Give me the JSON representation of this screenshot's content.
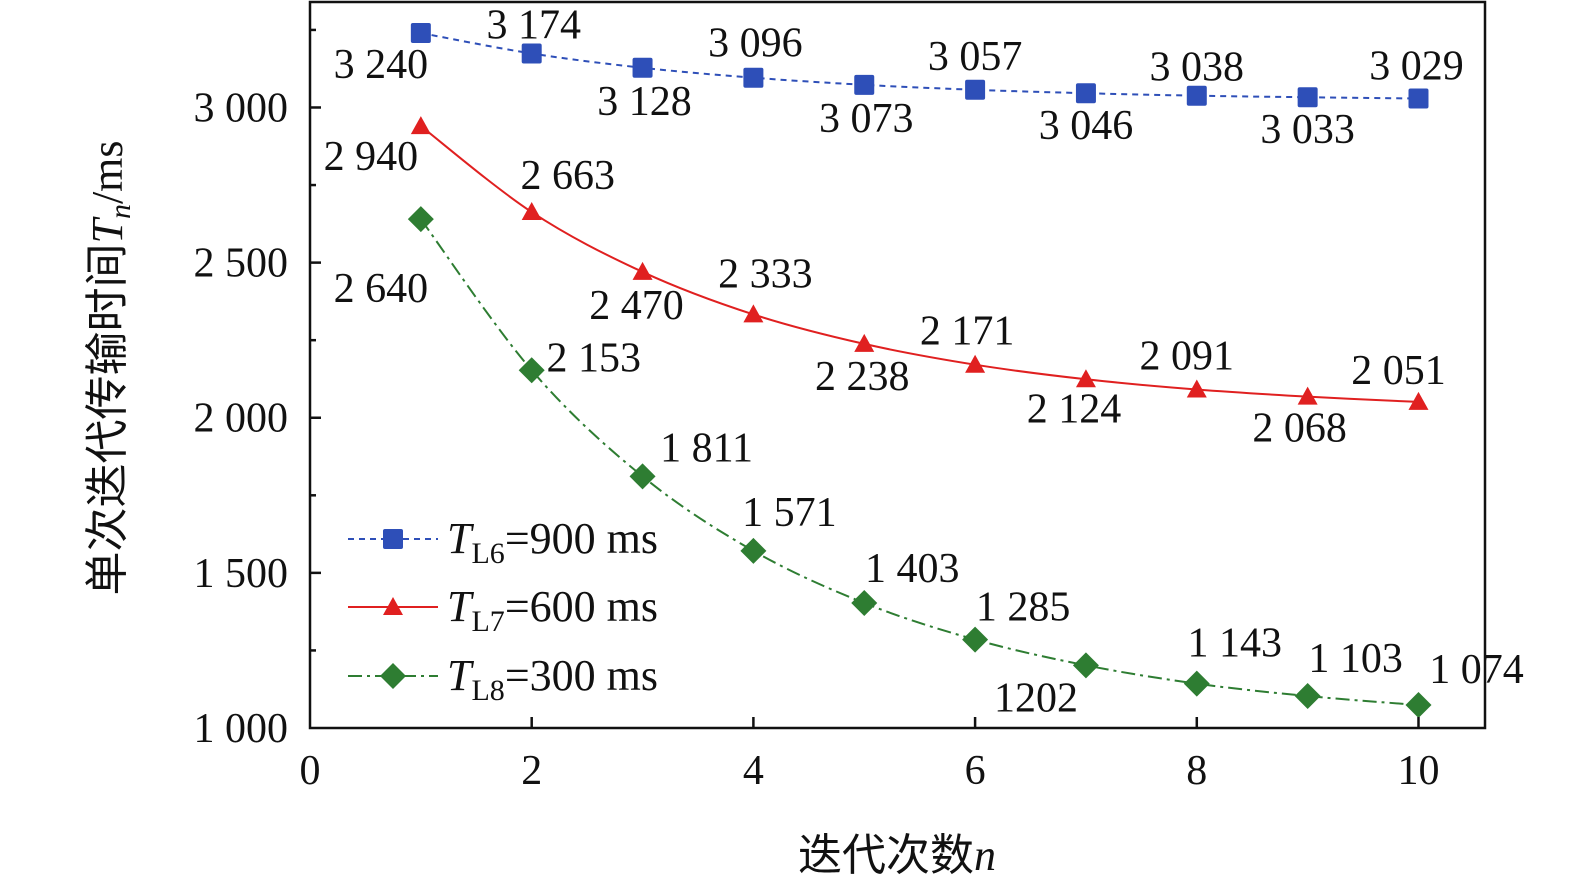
{
  "chart_data": {
    "type": "line",
    "xlabel": "迭代次数",
    "xlabel_var": "n",
    "ylabel": "单次迭代传输时间",
    "ylabel_var": "T",
    "ylabel_sub": "n",
    "ylabel_unit": "/ms",
    "xlim": [
      0,
      10.6
    ],
    "ylim": [
      1000,
      3340
    ],
    "x_ticks": [
      0,
      2,
      4,
      6,
      8,
      10
    ],
    "x_tick_labels": [
      "0",
      "2",
      "4",
      "6",
      "8",
      "10"
    ],
    "y_ticks": [
      1000,
      1500,
      2000,
      2500,
      3000
    ],
    "y_tick_labels": [
      "1 000",
      "1 500",
      "2 000",
      "2 500",
      "3 000"
    ],
    "grid": false,
    "legend_position": "bottom-left",
    "x": [
      1,
      2,
      3,
      4,
      5,
      6,
      7,
      8,
      9,
      10
    ],
    "series": [
      {
        "name_var": "T",
        "name_sub": "L6",
        "name_rest": "=900 ms",
        "color": "#2e4fb8",
        "marker": "square",
        "line_style": "dotted",
        "values": [
          3240,
          3174,
          3128,
          3096,
          3073,
          3057,
          3046,
          3038,
          3033,
          3029
        ],
        "labels": [
          "3 240",
          "3 174",
          "3 128",
          "3 096",
          "3 073",
          "3 057",
          "3 046",
          "3 038",
          "3 033",
          "3 029"
        ]
      },
      {
        "name_var": "T",
        "name_sub": "L7",
        "name_rest": "=600 ms",
        "color": "#e02020",
        "marker": "triangle",
        "line_style": "solid",
        "values": [
          2940,
          2663,
          2470,
          2333,
          2238,
          2171,
          2124,
          2091,
          2068,
          2051
        ],
        "labels": [
          "2 940",
          "2 663",
          "2 470",
          "2 333",
          "2 238",
          "2 171",
          "2 124",
          "2 091",
          "2 068",
          "2 051"
        ]
      },
      {
        "name_var": "T",
        "name_sub": "L8",
        "name_rest": "=300 ms",
        "color": "#2e7d32",
        "marker": "diamond",
        "line_style": "dashdot",
        "values": [
          2640,
          2153,
          1811,
          1571,
          1403,
          1285,
          1202,
          1143,
          1103,
          1074
        ],
        "labels": [
          "2 640",
          "2 153",
          "1 811",
          "1 571",
          "1 403",
          "1 285",
          "1202",
          "1 143",
          "1 103",
          "1 074"
        ]
      }
    ]
  }
}
